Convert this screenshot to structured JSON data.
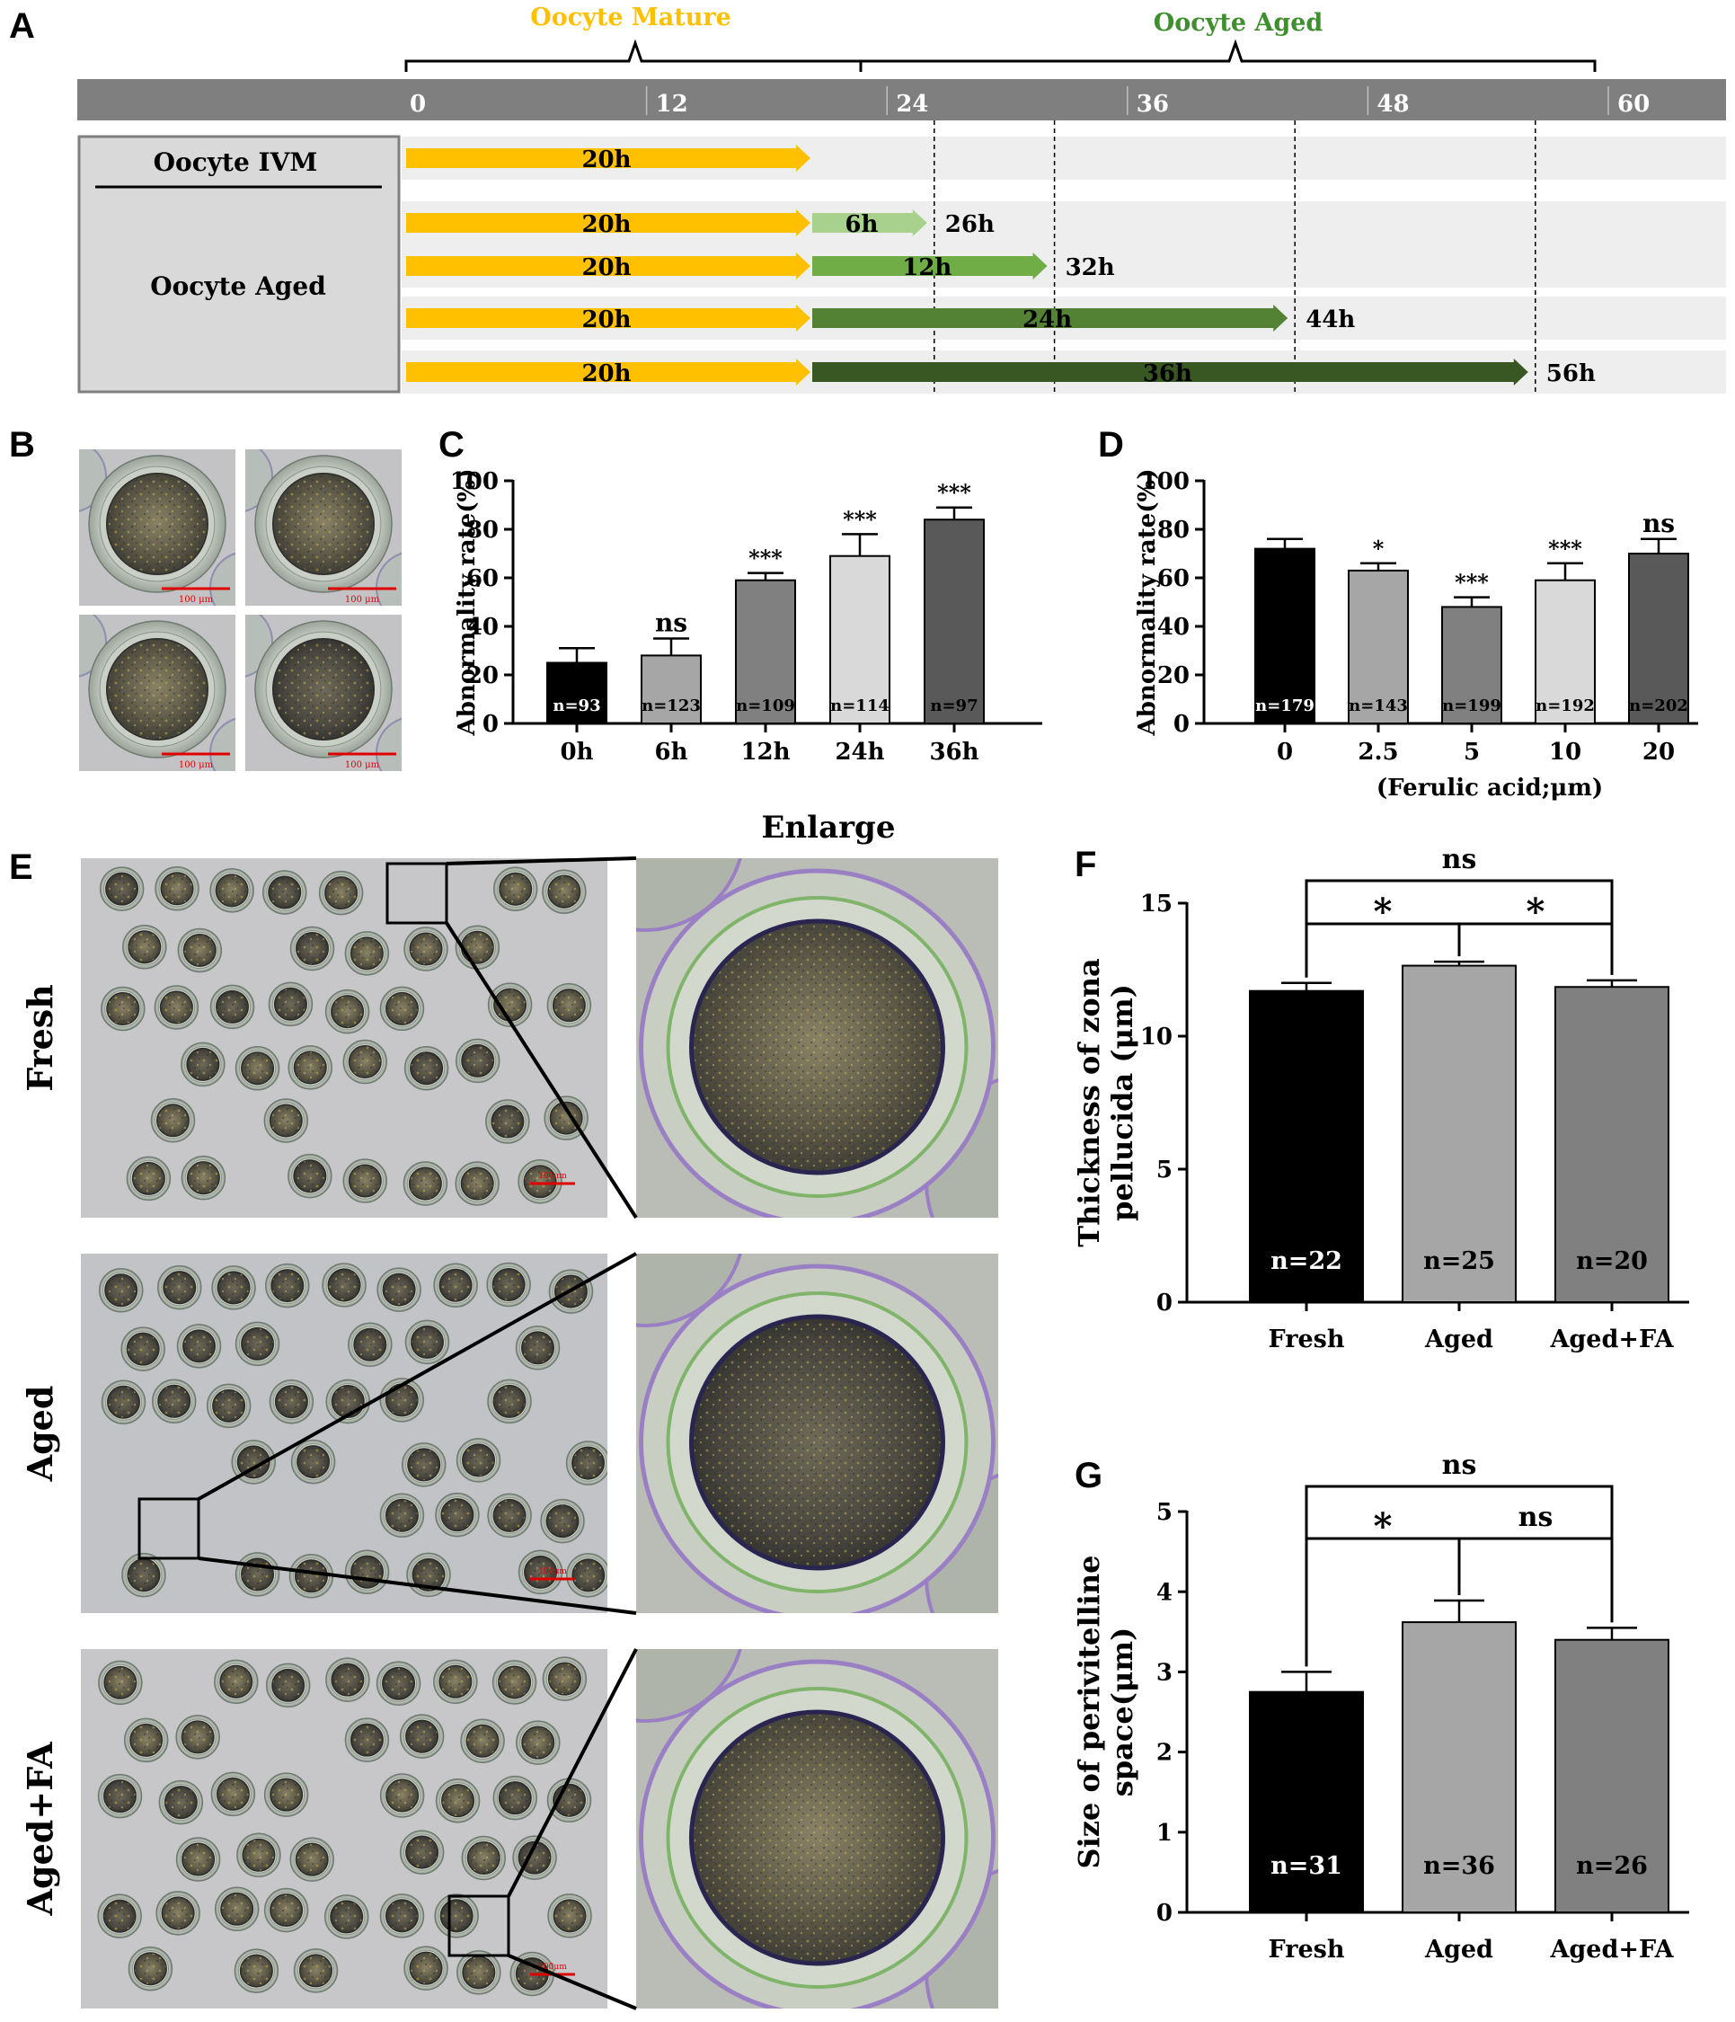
{
  "panel_letters": [
    "A",
    "B",
    "C",
    "D",
    "E",
    "F",
    "G"
  ],
  "colors": {
    "mature": "#FFC000",
    "aged_header": "#3F8F2F",
    "timeline_bar": "#7F7F7F",
    "aged_6h": "#A9D18E",
    "aged_12h": "#70AD47",
    "aged_24h": "#548235",
    "aged_36h": "#385723",
    "black": "#000000",
    "gray_light": "#D9D9D9",
    "gray_mid": "#A6A6A6",
    "gray_dark": "#595959",
    "gray_med": "#808080",
    "scale_bar": "#E00000"
  },
  "panelA": {
    "header_mature": "Oocyte Mature",
    "header_aged": "Oocyte Aged",
    "timeline_ticks": [
      "0",
      "12",
      "24",
      "36",
      "48",
      "60"
    ],
    "box_label_ivm": "Oocyte IVM",
    "box_label_aged": "Oocyte Aged",
    "rows": [
      {
        "mature_hours": 20,
        "mature_label": "20h",
        "aged_hours": 0,
        "aged_label": "",
        "end_label": ""
      },
      {
        "mature_hours": 20,
        "mature_label": "20h",
        "aged_hours": 6,
        "aged_label": "6h",
        "end_label": "26h"
      },
      {
        "mature_hours": 20,
        "mature_label": "20h",
        "aged_hours": 12,
        "aged_label": "12h",
        "end_label": "32h"
      },
      {
        "mature_hours": 20,
        "mature_label": "20h",
        "aged_hours": 24,
        "aged_label": "24h",
        "end_label": "44h"
      },
      {
        "mature_hours": 20,
        "mature_label": "20h",
        "aged_hours": 36,
        "aged_label": "36h",
        "end_label": "56h"
      }
    ]
  },
  "panelB": {
    "scale_labels": [
      "100 μm",
      "100 μm",
      "100 μm",
      "100 μm"
    ]
  },
  "panelE": {
    "enlarge_label": "Enlarge",
    "row_labels": [
      "Fresh",
      "Aged",
      "Aged+FA"
    ],
    "scale_labels": [
      "100μm",
      "100μm",
      "100μm"
    ]
  },
  "chart_data": [
    {
      "panel": "C",
      "type": "bar",
      "categories": [
        "0h",
        "6h",
        "12h",
        "24h",
        "36h"
      ],
      "values": [
        25,
        28,
        59,
        69,
        84
      ],
      "errors": [
        6,
        7,
        3,
        9,
        5
      ],
      "n_labels": [
        "n=93",
        "n=123",
        "n=109",
        "n=114",
        "n=97"
      ],
      "significance": [
        "",
        "ns",
        "***",
        "***",
        "***"
      ],
      "ylabel": "Abnormality rate(%)",
      "xlabel": "",
      "ylim": [
        0,
        100
      ],
      "yticks": [
        0,
        20,
        40,
        60,
        80,
        100
      ]
    },
    {
      "panel": "D",
      "type": "bar",
      "categories": [
        "0",
        "2.5",
        "5",
        "10",
        "20"
      ],
      "values": [
        72,
        63,
        48,
        59,
        70
      ],
      "errors": [
        4,
        3,
        4,
        7,
        6
      ],
      "n_labels": [
        "n=179",
        "n=143",
        "n=199",
        "n=192",
        "n=202"
      ],
      "significance": [
        "",
        "*",
        "***",
        "***",
        "ns"
      ],
      "ylabel": "Abnormality rate(%)",
      "xlabel": "(Ferulic acid;μm)",
      "ylim": [
        0,
        100
      ],
      "yticks": [
        0,
        20,
        40,
        60,
        80,
        100
      ]
    },
    {
      "panel": "F",
      "type": "bar",
      "categories": [
        "Fresh",
        "Aged",
        "Aged+FA"
      ],
      "values": [
        11.7,
        12.65,
        11.85
      ],
      "errors": [
        0.3,
        0.15,
        0.25
      ],
      "n_labels": [
        "n=22",
        "n=25",
        "n=20"
      ],
      "comparisons": {
        "top": "ns",
        "left": "*",
        "right": "*"
      },
      "ylabel": "Thickness of zona pellucida (μm)",
      "ylabel_lines": [
        "Thickness of zona",
        "pellucida (μm)"
      ],
      "xlabel": "",
      "ylim": [
        0,
        15
      ],
      "yticks": [
        0,
        5,
        10,
        15
      ]
    },
    {
      "panel": "G",
      "type": "bar",
      "categories": [
        "Fresh",
        "Aged",
        "Aged+FA"
      ],
      "values": [
        2.75,
        3.62,
        3.4
      ],
      "errors": [
        0.25,
        0.27,
        0.15
      ],
      "n_labels": [
        "n=31",
        "n=36",
        "n=26"
      ],
      "comparisons": {
        "top": "ns",
        "left": "*",
        "right": "ns"
      },
      "ylabel": "Size of perivitelline space(μm)",
      "ylabel_lines": [
        "Size of perivitelline",
        "space(μm)"
      ],
      "xlabel": "",
      "ylim": [
        0,
        5
      ],
      "yticks": [
        0,
        1,
        2,
        3,
        4,
        5
      ]
    }
  ]
}
